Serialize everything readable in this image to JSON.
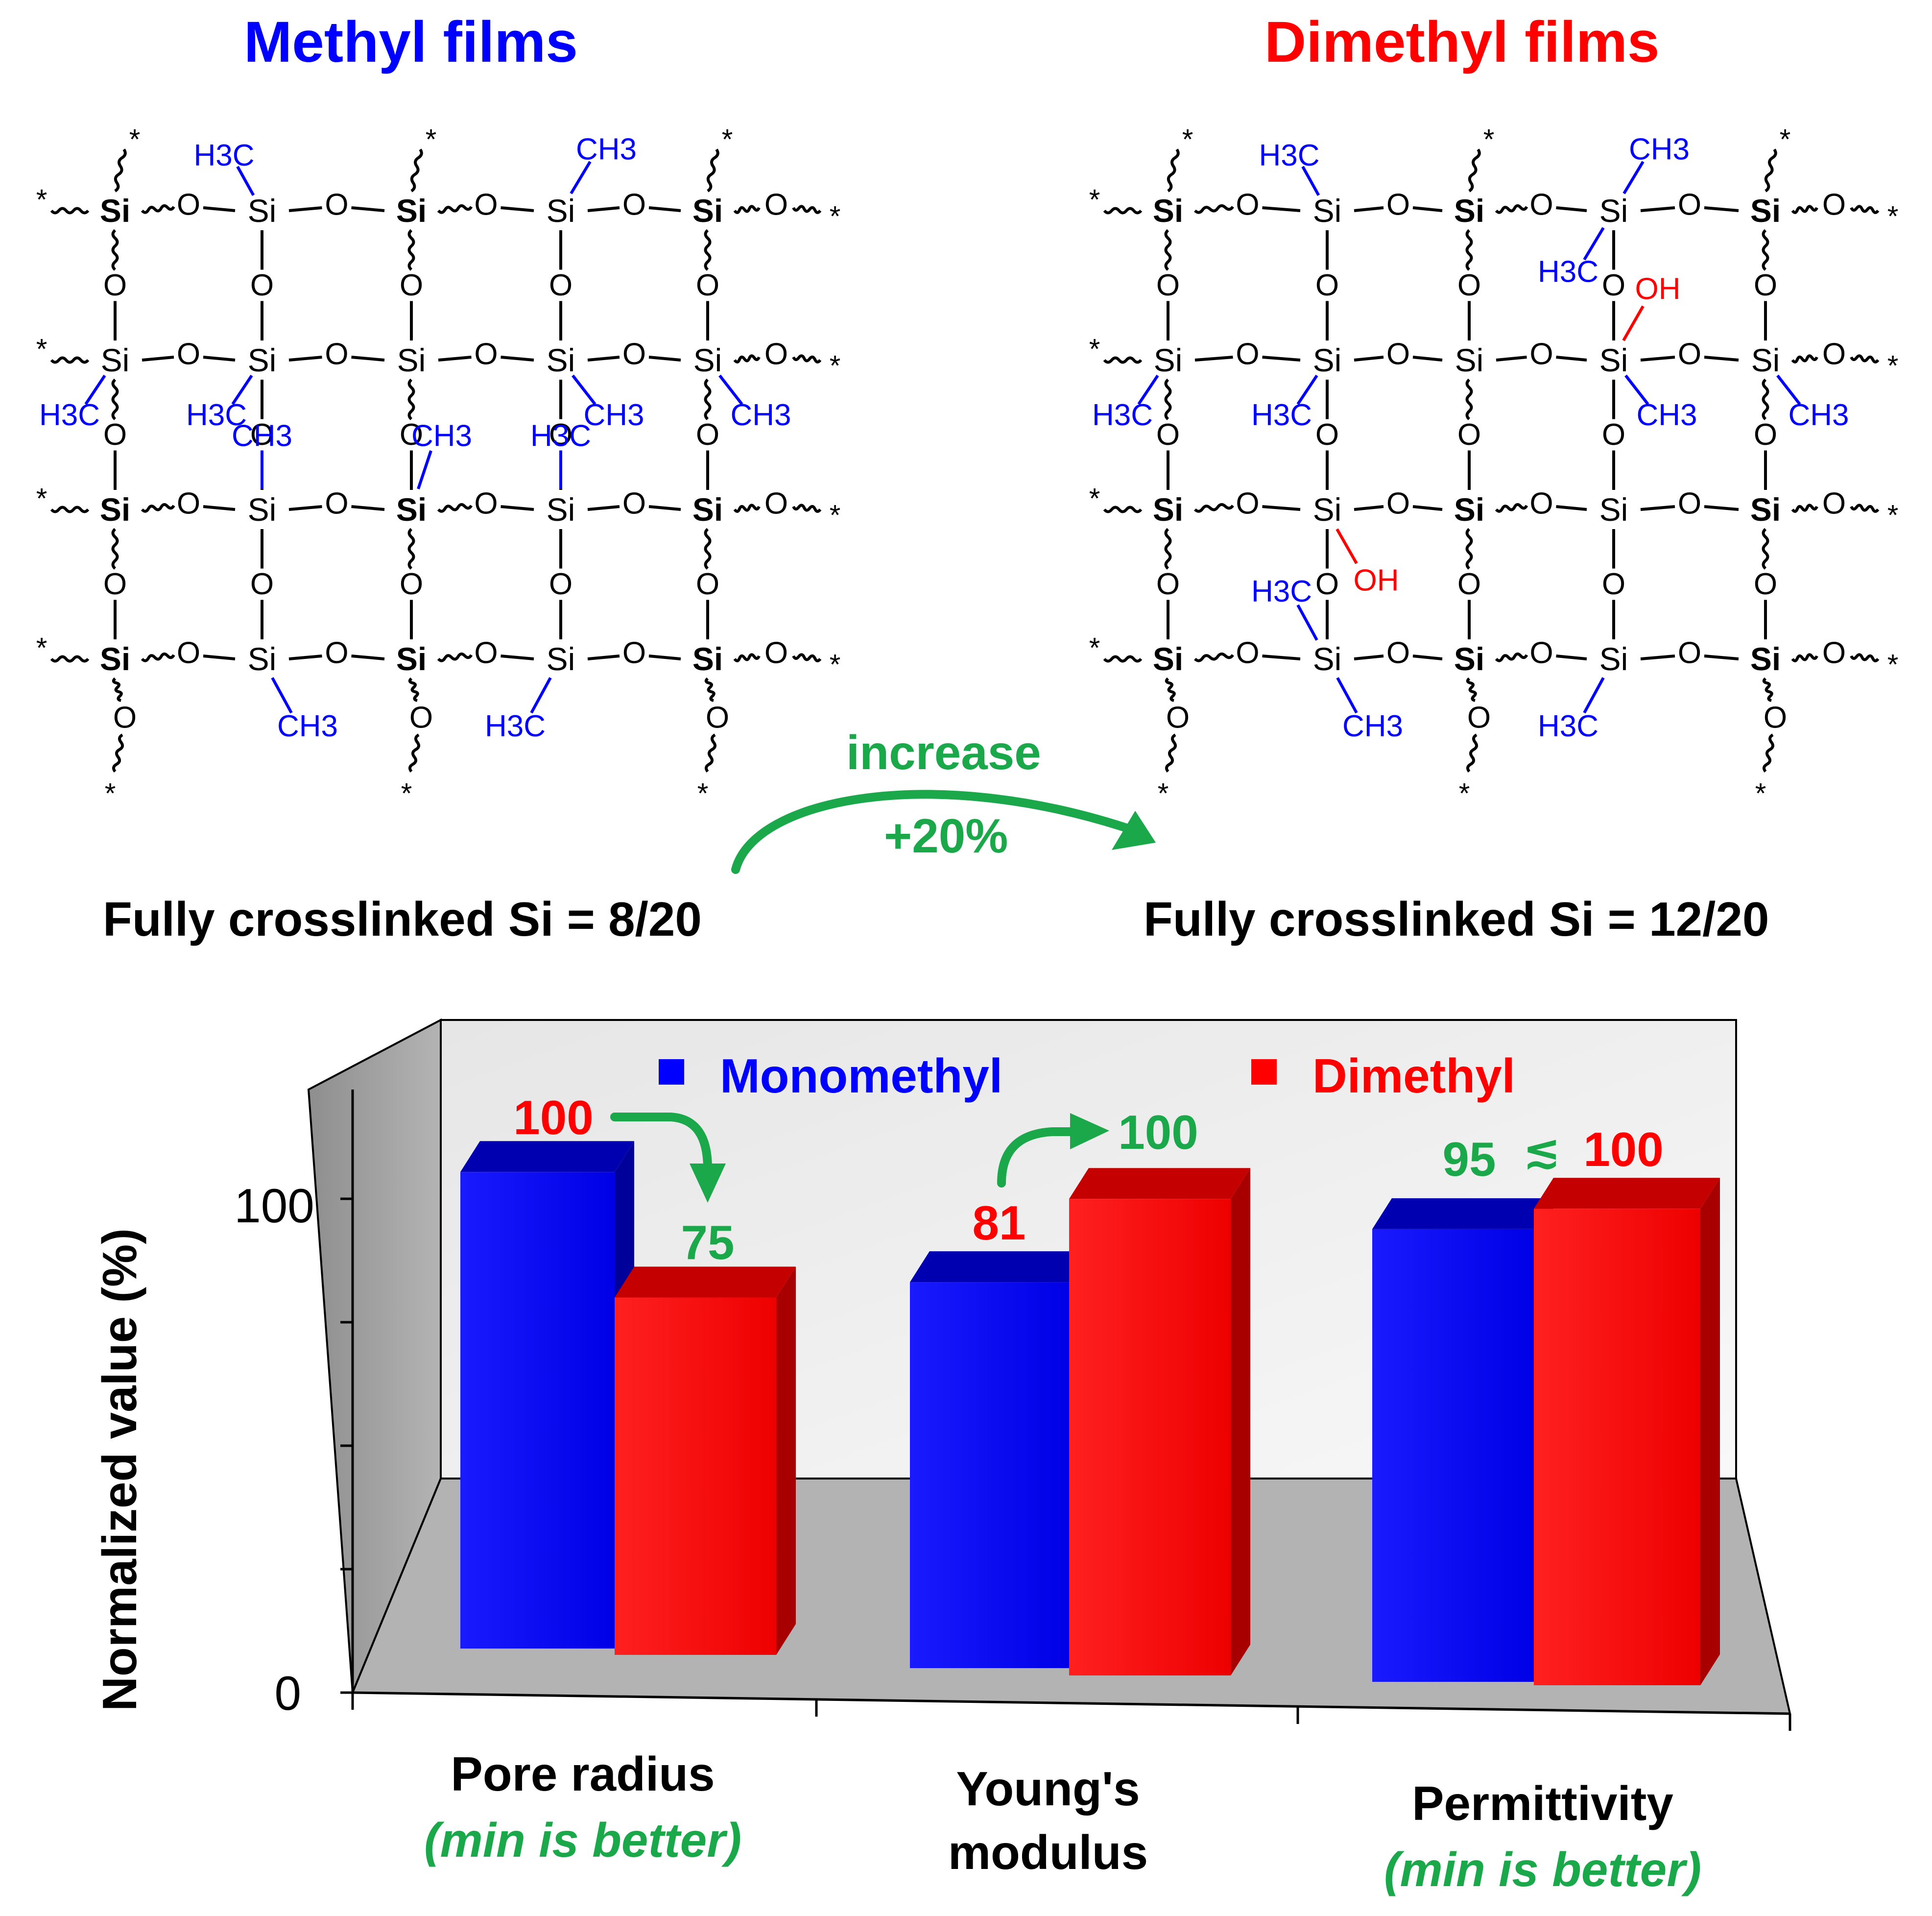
{
  "header": {
    "left_title": "Methyl films",
    "right_title": "Dimethyl films",
    "left_caption": "Fully crosslinked Si = 8/20",
    "right_caption": "Fully crosslinked Si = 12/20",
    "change_label": "increase",
    "change_value": "+20%"
  },
  "structures": {
    "atom_si": "Si",
    "atom_o": "O",
    "group_ch3": "CH3",
    "group_h3c": "H3C",
    "group_oh": "OH",
    "end_mark": "*"
  },
  "colors": {
    "monomethyl": "#0000ff",
    "dimethyl": "#ff0000",
    "accent": "#1aa84a"
  },
  "chart_data": {
    "type": "bar",
    "ylabel": "Normalized value (%)",
    "yticks": [
      "0",
      "100"
    ],
    "ylim": [
      0,
      125
    ],
    "categories": [
      "Pore radius",
      "Young's modulus",
      "Permittivity"
    ],
    "category_lines": [
      [
        "Pore radius"
      ],
      [
        "Young's",
        "modulus"
      ],
      [
        "Permittivity"
      ]
    ],
    "category_notes": [
      "(min is better)",
      "",
      "(min is better)"
    ],
    "series": [
      {
        "name": "Monomethyl",
        "values": [
          100,
          81,
          95
        ]
      },
      {
        "name": "Dimethyl",
        "values": [
          75,
          100,
          100
        ]
      }
    ],
    "annotations": {
      "pore_start": "100",
      "pore_end": "75",
      "young_start": "81",
      "young_end": "100",
      "perm_low": "95",
      "perm_sym": "≲",
      "perm_high": "100"
    }
  }
}
